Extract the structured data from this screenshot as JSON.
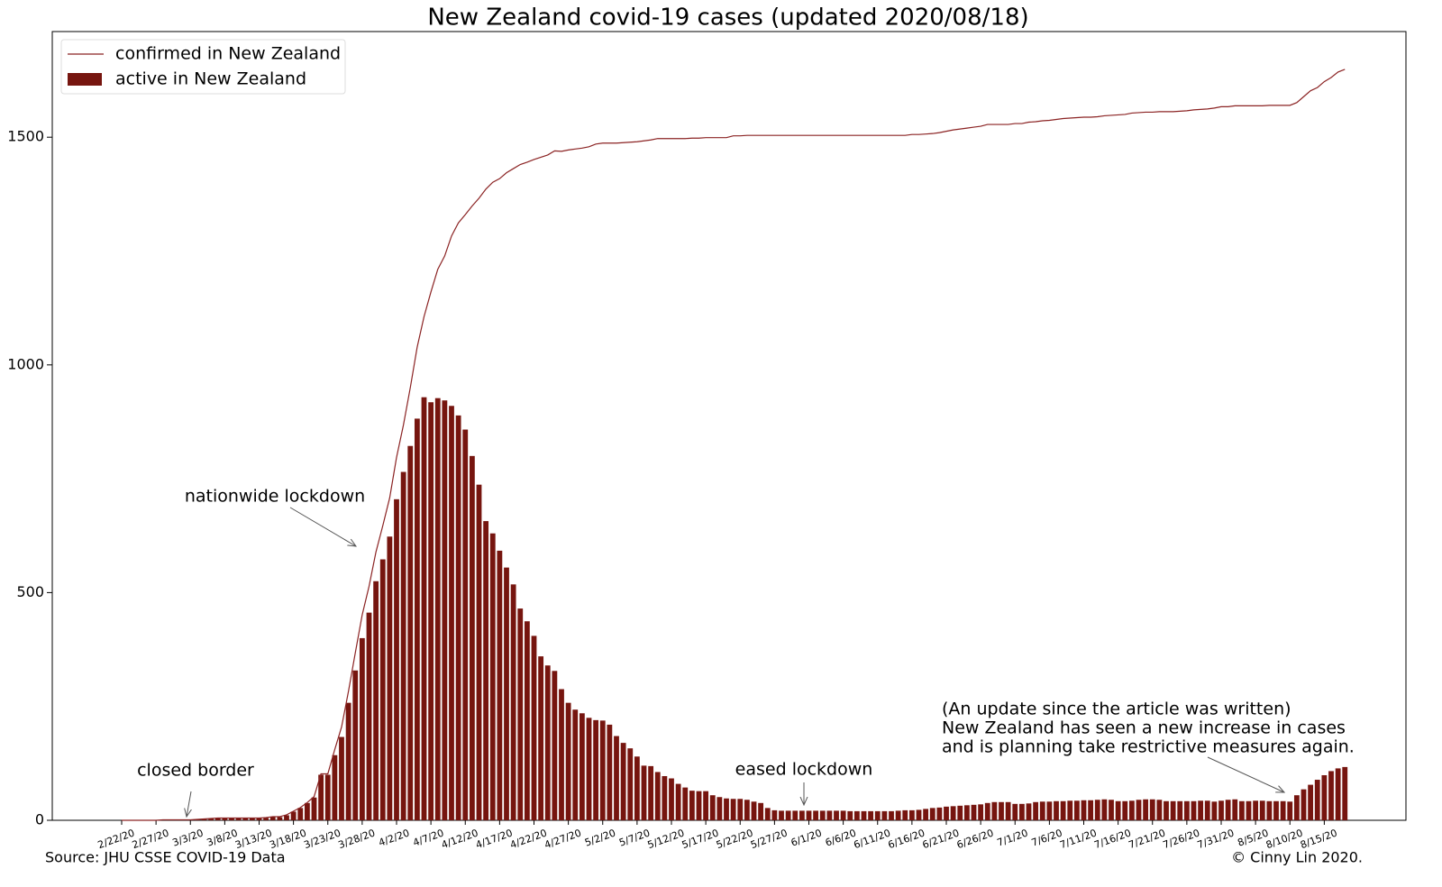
{
  "chart_data": {
    "type": "bar",
    "title": "New Zealand covid-19 cases (updated 2020/08/18)",
    "source": "Source: JHU CSSE COVID-19 Data",
    "credit": "© Cinny Lin 2020.",
    "legend": "upper left",
    "grid": false,
    "categories": [
      "2/22/20",
      null,
      null,
      null,
      null,
      "2/27/20",
      null,
      null,
      null,
      null,
      "3/3/20",
      null,
      null,
      null,
      null,
      "3/8/20",
      null,
      null,
      null,
      null,
      "3/13/20",
      null,
      null,
      null,
      null,
      "3/18/20",
      null,
      null,
      null,
      null,
      "3/23/20",
      null,
      null,
      null,
      null,
      "3/28/20",
      null,
      null,
      null,
      null,
      "4/2/20",
      null,
      null,
      null,
      null,
      "4/7/20",
      null,
      null,
      null,
      null,
      "4/12/20",
      null,
      null,
      null,
      null,
      "4/17/20",
      null,
      null,
      null,
      null,
      "4/22/20",
      null,
      null,
      null,
      null,
      "4/27/20",
      null,
      null,
      null,
      null,
      "5/2/20",
      null,
      null,
      null,
      null,
      "5/7/20",
      null,
      null,
      null,
      null,
      "5/12/20",
      null,
      null,
      null,
      null,
      "5/17/20",
      null,
      null,
      null,
      null,
      "5/22/20",
      null,
      null,
      null,
      null,
      "5/27/20",
      null,
      null,
      null,
      null,
      "6/1/20",
      null,
      null,
      null,
      null,
      "6/6/20",
      null,
      null,
      null,
      null,
      "6/11/20",
      null,
      null,
      null,
      null,
      "6/16/20",
      null,
      null,
      null,
      null,
      "6/21/20",
      null,
      null,
      null,
      null,
      "6/26/20",
      null,
      null,
      null,
      null,
      "7/1/20",
      null,
      null,
      null,
      null,
      "7/6/20",
      null,
      null,
      null,
      null,
      "7/11/20",
      null,
      null,
      null,
      null,
      "7/16/20",
      null,
      null,
      null,
      null,
      "7/21/20",
      null,
      null,
      null,
      null,
      "7/26/20",
      null,
      null,
      null,
      null,
      "7/31/20",
      null,
      null,
      null,
      null,
      "8/5/20",
      null,
      null,
      null,
      null,
      "8/10/20",
      null,
      null,
      null,
      null,
      "8/15/20",
      null,
      null,
      null
    ],
    "series": [
      {
        "name": "confirmed in New Zealand",
        "type": "line",
        "color": "#8b2323",
        "values": [
          0,
          0,
          0,
          0,
          0,
          0,
          1,
          1,
          1,
          1,
          1,
          2,
          3,
          4,
          5,
          5,
          5,
          5,
          5,
          5,
          5,
          6,
          8,
          8,
          12,
          20,
          28,
          39,
          52,
          102,
          102,
          155,
          205,
          283,
          368,
          451,
          514,
          589,
          647,
          708,
          797,
          868,
          950,
          1039,
          1106,
          1160,
          1210,
          1239,
          1283,
          1312,
          1330,
          1349,
          1366,
          1386,
          1401,
          1409,
          1422,
          1431,
          1440,
          1445,
          1451,
          1456,
          1461,
          1470,
          1469,
          1472,
          1474,
          1476,
          1479,
          1485,
          1487,
          1487,
          1487,
          1488,
          1489,
          1490,
          1492,
          1494,
          1497,
          1497,
          1497,
          1497,
          1497,
          1498,
          1498,
          1499,
          1499,
          1499,
          1499,
          1503,
          1503,
          1504,
          1504,
          1504,
          1504,
          1504,
          1504,
          1504,
          1504,
          1504,
          1504,
          1504,
          1504,
          1504,
          1504,
          1504,
          1504,
          1504,
          1504,
          1504,
          1504,
          1504,
          1504,
          1504,
          1504,
          1506,
          1506,
          1507,
          1508,
          1510,
          1513,
          1516,
          1518,
          1520,
          1522,
          1524,
          1528,
          1528,
          1528,
          1528,
          1530,
          1530,
          1533,
          1534,
          1536,
          1537,
          1539,
          1541,
          1542,
          1543,
          1544,
          1544,
          1545,
          1547,
          1548,
          1549,
          1550,
          1553,
          1554,
          1555,
          1555,
          1556,
          1556,
          1556,
          1557,
          1558,
          1560,
          1561,
          1562,
          1564,
          1567,
          1567,
          1569,
          1569,
          1569,
          1569,
          1569,
          1570,
          1570,
          1570,
          1570,
          1576,
          1589,
          1602,
          1609,
          1622,
          1631,
          1643,
          1649
        ]
      },
      {
        "name": "active in New Zealand",
        "type": "bar",
        "color": "#76150f",
        "values": [
          0,
          0,
          0,
          0,
          0,
          0,
          1,
          1,
          1,
          1,
          1,
          2,
          2,
          3,
          4,
          4,
          4,
          4,
          4,
          4,
          4,
          5,
          7,
          7,
          11,
          19,
          27,
          38,
          50,
          100,
          100,
          143,
          183,
          258,
          329,
          400,
          456,
          525,
          573,
          623,
          705,
          765,
          822,
          882,
          929,
          918,
          927,
          922,
          910,
          889,
          858,
          800,
          737,
          657,
          630,
          592,
          555,
          518,
          465,
          437,
          405,
          360,
          340,
          328,
          288,
          258,
          243,
          235,
          225,
          220,
          219,
          210,
          185,
          170,
          158,
          140,
          120,
          119,
          106,
          97,
          92,
          80,
          72,
          65,
          64,
          64,
          55,
          51,
          48,
          47,
          47,
          45,
          41,
          38,
          27,
          22,
          21,
          21,
          21,
          21,
          21,
          21,
          21,
          21,
          21,
          21,
          20,
          20,
          20,
          20,
          20,
          20,
          20,
          21,
          22,
          22,
          23,
          25,
          27,
          28,
          30,
          31,
          32,
          33,
          34,
          35,
          38,
          40,
          40,
          40,
          36,
          36,
          37,
          40,
          41,
          41,
          42,
          42,
          43,
          43,
          44,
          44,
          45,
          46,
          45,
          42,
          42,
          43,
          45,
          46,
          46,
          45,
          42,
          42,
          42,
          42,
          42,
          43,
          43,
          41,
          43,
          45,
          46,
          42,
          42,
          43,
          43,
          42,
          42,
          42,
          41,
          55,
          68,
          78,
          89,
          99,
          108,
          114,
          117
        ]
      }
    ],
    "ylim": [
      0,
      1732
    ],
    "yticks": [
      0,
      500,
      1000,
      1500
    ],
    "annotations": [
      {
        "text": "closed border"
      },
      {
        "text": "nationwide lockdown"
      },
      {
        "text": "eased lockdown"
      },
      {
        "lines": [
          "(An update since the article was written)",
          "New Zealand has seen a new increase in cases",
          "and is planning take restrictive measures again."
        ]
      }
    ]
  }
}
